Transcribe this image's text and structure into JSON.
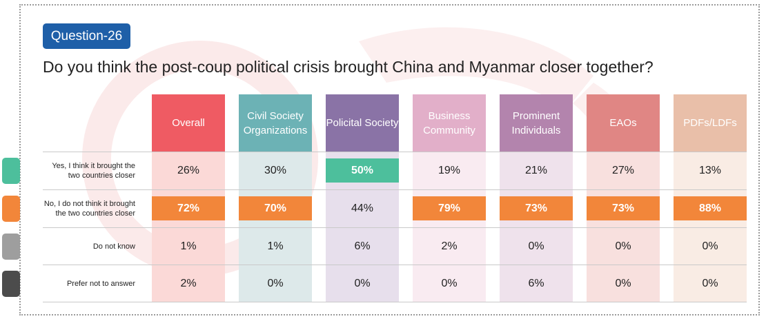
{
  "question": {
    "badge": "Question-26",
    "title": "Do you think the post-coup political crisis brought China and Myanmar closer together?"
  },
  "colors": {
    "badge": "#1e5fa8",
    "yes": "#4dbf9c",
    "no": "#f2863a",
    "dont_know": "#9e9e9e",
    "prefer_not": "#4c4c4c"
  },
  "chart_data": {
    "type": "table",
    "columns": [
      {
        "label": "Overall",
        "header_color": "#ef5b63",
        "body_color": "#fbd9d7"
      },
      {
        "label": "Civil Society Organizations",
        "header_color": "#6cb2b5",
        "body_color": "#dde9ea"
      },
      {
        "label": "Policital Society",
        "header_color": "#8a73a6",
        "body_color": "#e7dfec"
      },
      {
        "label": "Business Community",
        "header_color": "#e2afc9",
        "body_color": "#f9ebf1"
      },
      {
        "label": "Prominent Individuals",
        "header_color": "#b384ad",
        "body_color": "#efe2ec"
      },
      {
        "label": "EAOs",
        "header_color": "#e08684",
        "body_color": "#f8e0de"
      },
      {
        "label": "PDFs/LDFs",
        "header_color": "#e9bfa9",
        "body_color": "#f9ece4"
      }
    ],
    "rows": [
      {
        "label": "Yes, I think it brought the two countries closer",
        "legend_color": "#4dbf9c",
        "values": [
          "26%",
          "30%",
          "50%",
          "19%",
          "21%",
          "27%",
          "13%"
        ],
        "highlight": [
          false,
          false,
          true,
          false,
          false,
          false,
          false
        ]
      },
      {
        "label": "No, I do not think it brought the two countries closer",
        "legend_color": "#f2863a",
        "values": [
          "72%",
          "70%",
          "44%",
          "79%",
          "73%",
          "73%",
          "88%"
        ],
        "highlight": [
          true,
          true,
          false,
          true,
          true,
          true,
          true
        ]
      },
      {
        "label": "Do not know",
        "legend_color": "#9e9e9e",
        "values": [
          "1%",
          "1%",
          "6%",
          "2%",
          "0%",
          "0%",
          "0%"
        ],
        "highlight": [
          false,
          false,
          false,
          false,
          false,
          false,
          false
        ]
      },
      {
        "label": "Prefer not to answer",
        "legend_color": "#4c4c4c",
        "values": [
          "2%",
          "0%",
          "0%",
          "0%",
          "6%",
          "0%",
          "0%"
        ],
        "highlight": [
          false,
          false,
          false,
          false,
          false,
          false,
          false
        ]
      }
    ]
  }
}
